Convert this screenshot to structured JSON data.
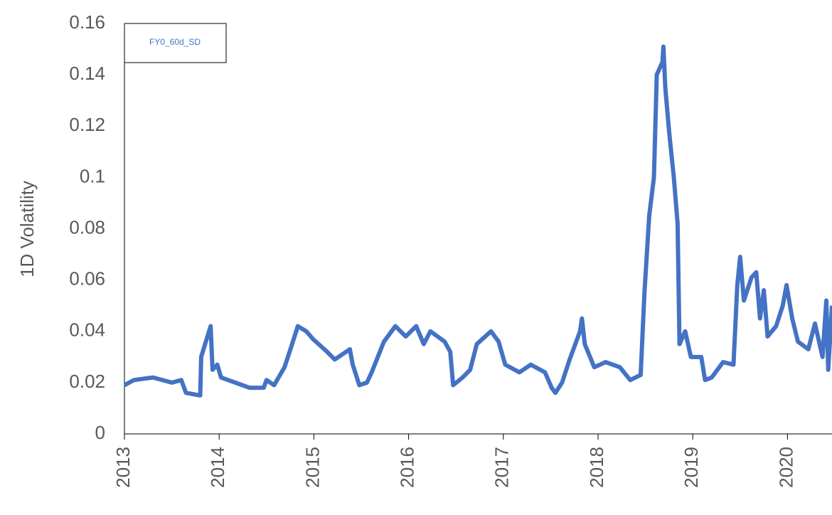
{
  "chart_data": {
    "type": "line",
    "y_label": "1D Volatility",
    "xlim": [
      2013,
      2020.47
    ],
    "xticks": [
      2013,
      2014,
      2015,
      2016,
      2017,
      2018,
      2019,
      2020
    ],
    "ylim": [
      0,
      0.16
    ],
    "yticks": [
      0,
      0.02,
      0.04,
      0.06,
      0.08,
      0.1,
      0.12,
      0.14,
      0.16
    ],
    "legend": "top-left",
    "series": [
      {
        "name": "FY0_60d_SD",
        "color": "#4472c4",
        "x": [
          2013.0,
          2013.1,
          2013.3,
          2013.5,
          2013.6,
          2013.65,
          2013.8,
          2013.81,
          2013.86,
          2013.91,
          2013.93,
          2013.98,
          2014.02,
          2014.17,
          2014.32,
          2014.47,
          2014.5,
          2014.58,
          2014.69,
          2014.77,
          2014.83,
          2014.92,
          2014.99,
          2015.14,
          2015.22,
          2015.38,
          2015.41,
          2015.48,
          2015.56,
          2015.61,
          2015.74,
          2015.86,
          2015.97,
          2016.08,
          2016.16,
          2016.23,
          2016.38,
          2016.44,
          2016.47,
          2016.57,
          2016.65,
          2016.72,
          2016.87,
          2016.95,
          2017.02,
          2017.17,
          2017.29,
          2017.44,
          2017.51,
          2017.55,
          2017.62,
          2017.7,
          2017.81,
          2017.83,
          2017.86,
          2017.96,
          2018.08,
          2018.23,
          2018.34,
          2018.45,
          2018.49,
          2018.54,
          2018.59,
          2018.62,
          2018.68,
          2018.69,
          2018.71,
          2018.75,
          2018.8,
          2018.84,
          2018.86,
          2018.92,
          2018.98,
          2019.09,
          2019.13,
          2019.2,
          2019.32,
          2019.43,
          2019.47,
          2019.5,
          2019.54,
          2019.62,
          2019.67,
          2019.71,
          2019.75,
          2019.79,
          2019.88,
          2019.95,
          2019.99,
          2020.05,
          2020.11,
          2020.22,
          2020.29,
          2020.37,
          2020.41,
          2020.43,
          2020.47
        ],
        "values": [
          0.019,
          0.021,
          0.022,
          0.02,
          0.021,
          0.016,
          0.015,
          0.03,
          0.036,
          0.042,
          0.025,
          0.027,
          0.022,
          0.02,
          0.018,
          0.018,
          0.021,
          0.019,
          0.026,
          0.035,
          0.042,
          0.04,
          0.037,
          0.032,
          0.029,
          0.033,
          0.027,
          0.019,
          0.02,
          0.024,
          0.036,
          0.042,
          0.038,
          0.042,
          0.035,
          0.04,
          0.036,
          0.032,
          0.019,
          0.022,
          0.025,
          0.035,
          0.04,
          0.036,
          0.027,
          0.024,
          0.027,
          0.024,
          0.018,
          0.016,
          0.02,
          0.029,
          0.04,
          0.045,
          0.035,
          0.026,
          0.028,
          0.026,
          0.021,
          0.023,
          0.055,
          0.085,
          0.1,
          0.14,
          0.145,
          0.151,
          0.135,
          0.118,
          0.1,
          0.082,
          0.035,
          0.04,
          0.03,
          0.03,
          0.021,
          0.022,
          0.028,
          0.027,
          0.058,
          0.069,
          0.052,
          0.061,
          0.063,
          0.045,
          0.056,
          0.038,
          0.042,
          0.05,
          0.058,
          0.045,
          0.036,
          0.033,
          0.043,
          0.03,
          0.052,
          0.025,
          0.05
        ]
      }
    ]
  }
}
